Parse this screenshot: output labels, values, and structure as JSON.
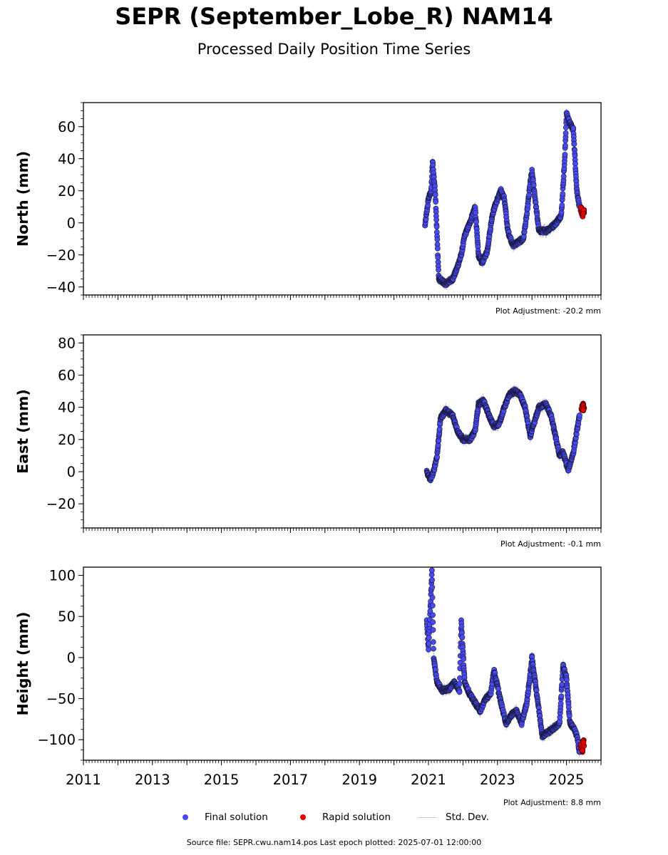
{
  "title": "SEPR (September_Lobe_R) NAM14",
  "subtitle": "Processed Daily Position Time Series",
  "footer": "Source file: SEPR.cwu.nam14.pos  Last epoch plotted: 2025-07-01 12:00:00",
  "legend": {
    "final": "Final solution",
    "rapid": "Rapid solution",
    "stddev": "Std. Dev."
  },
  "colors": {
    "final": "#4a4af2",
    "rapid": "#e80000",
    "stddev": "#c8c8c8"
  },
  "chart_data": [
    {
      "type": "scatter",
      "ylabel": "North (mm)",
      "adjustment": "Plot Adjustment: -20.2 mm",
      "xlim": [
        2011,
        2026
      ],
      "ylim": [
        -45,
        75
      ],
      "yticks": [
        -40,
        -20,
        0,
        20,
        40,
        60
      ],
      "xticks": [
        2011,
        2013,
        2015,
        2017,
        2019,
        2021,
        2023,
        2025
      ],
      "show_xtick_labels": false,
      "final_series": [
        [
          2020.9,
          -2
        ],
        [
          2021.0,
          15
        ],
        [
          2021.08,
          20
        ],
        [
          2021.12,
          38
        ],
        [
          2021.2,
          18
        ],
        [
          2021.3,
          -35
        ],
        [
          2021.5,
          -38
        ],
        [
          2021.7,
          -35
        ],
        [
          2021.8,
          -30
        ],
        [
          2021.95,
          -20
        ],
        [
          2022.05,
          -8
        ],
        [
          2022.2,
          0
        ],
        [
          2022.35,
          10
        ],
        [
          2022.45,
          -20
        ],
        [
          2022.55,
          -25
        ],
        [
          2022.7,
          -18
        ],
        [
          2022.85,
          5
        ],
        [
          2022.95,
          12
        ],
        [
          2023.1,
          20
        ],
        [
          2023.2,
          15
        ],
        [
          2023.3,
          -5
        ],
        [
          2023.45,
          -14
        ],
        [
          2023.6,
          -12
        ],
        [
          2023.75,
          -10
        ],
        [
          2023.85,
          5
        ],
        [
          2023.95,
          25
        ],
        [
          2024.0,
          32
        ],
        [
          2024.2,
          -5
        ],
        [
          2024.4,
          -5
        ],
        [
          2024.55,
          -3
        ],
        [
          2024.7,
          0
        ],
        [
          2024.85,
          5
        ],
        [
          2024.95,
          40
        ],
        [
          2025.0,
          68
        ],
        [
          2025.1,
          62
        ],
        [
          2025.2,
          58
        ],
        [
          2025.3,
          20
        ],
        [
          2025.38,
          10
        ]
      ],
      "rapid_series": [
        [
          2025.42,
          8
        ],
        [
          2025.46,
          5
        ],
        [
          2025.5,
          7
        ]
      ]
    },
    {
      "type": "scatter",
      "ylabel": "East (mm)",
      "adjustment": "Plot Adjustment: -0.1 mm",
      "xlim": [
        2011,
        2026
      ],
      "ylim": [
        -35,
        85
      ],
      "yticks": [
        -20,
        0,
        20,
        40,
        60,
        80
      ],
      "xticks": [
        2011,
        2013,
        2015,
        2017,
        2019,
        2021,
        2023,
        2025
      ],
      "show_xtick_labels": false,
      "final_series": [
        [
          2020.95,
          0
        ],
        [
          2021.05,
          -5
        ],
        [
          2021.15,
          0
        ],
        [
          2021.25,
          10
        ],
        [
          2021.35,
          33
        ],
        [
          2021.5,
          38
        ],
        [
          2021.7,
          35
        ],
        [
          2021.85,
          25
        ],
        [
          2022.0,
          20
        ],
        [
          2022.2,
          20
        ],
        [
          2022.35,
          25
        ],
        [
          2022.45,
          42
        ],
        [
          2022.6,
          44
        ],
        [
          2022.75,
          35
        ],
        [
          2022.9,
          28
        ],
        [
          2023.05,
          30
        ],
        [
          2023.2,
          40
        ],
        [
          2023.35,
          48
        ],
        [
          2023.5,
          50
        ],
        [
          2023.65,
          48
        ],
        [
          2023.8,
          40
        ],
        [
          2023.95,
          22
        ],
        [
          2024.2,
          40
        ],
        [
          2024.4,
          42
        ],
        [
          2024.55,
          35
        ],
        [
          2024.7,
          20
        ],
        [
          2024.8,
          10
        ],
        [
          2024.9,
          12
        ],
        [
          2025.05,
          1
        ],
        [
          2025.2,
          12
        ],
        [
          2025.3,
          25
        ],
        [
          2025.38,
          35
        ]
      ],
      "rapid_series": [
        [
          2025.44,
          40
        ],
        [
          2025.48,
          41
        ],
        [
          2025.5,
          39
        ]
      ]
    },
    {
      "type": "scatter",
      "ylabel": "Height (mm)",
      "adjustment": "Plot Adjustment: 8.8 mm",
      "xlim": [
        2011,
        2026
      ],
      "ylim": [
        -125,
        110
      ],
      "yticks": [
        -100,
        -50,
        0,
        50,
        100
      ],
      "xticks": [
        2011,
        2013,
        2015,
        2017,
        2019,
        2021,
        2023,
        2025
      ],
      "show_xtick_labels": true,
      "final_series": [
        [
          2020.95,
          45
        ],
        [
          2021.0,
          10
        ],
        [
          2021.05,
          55
        ],
        [
          2021.1,
          105
        ],
        [
          2021.15,
          0
        ],
        [
          2021.25,
          -30
        ],
        [
          2021.4,
          -40
        ],
        [
          2021.6,
          -38
        ],
        [
          2021.75,
          -30
        ],
        [
          2021.9,
          -40
        ],
        [
          2021.95,
          45
        ],
        [
          2022.05,
          -30
        ],
        [
          2022.2,
          -45
        ],
        [
          2022.35,
          -55
        ],
        [
          2022.5,
          -65
        ],
        [
          2022.65,
          -50
        ],
        [
          2022.8,
          -45
        ],
        [
          2022.9,
          -15
        ],
        [
          2023.0,
          -35
        ],
        [
          2023.1,
          -55
        ],
        [
          2023.25,
          -80
        ],
        [
          2023.4,
          -70
        ],
        [
          2023.55,
          -65
        ],
        [
          2023.7,
          -80
        ],
        [
          2023.85,
          -55
        ],
        [
          2023.95,
          -20
        ],
        [
          2024.0,
          0
        ],
        [
          2024.3,
          -95
        ],
        [
          2024.5,
          -90
        ],
        [
          2024.65,
          -85
        ],
        [
          2024.8,
          -80
        ],
        [
          2024.9,
          -10
        ],
        [
          2025.0,
          -25
        ],
        [
          2025.1,
          -80
        ],
        [
          2025.2,
          -85
        ],
        [
          2025.3,
          -95
        ],
        [
          2025.38,
          -115
        ]
      ],
      "rapid_series": [
        [
          2025.42,
          -108
        ],
        [
          2025.46,
          -112
        ],
        [
          2025.5,
          -104
        ]
      ]
    }
  ]
}
